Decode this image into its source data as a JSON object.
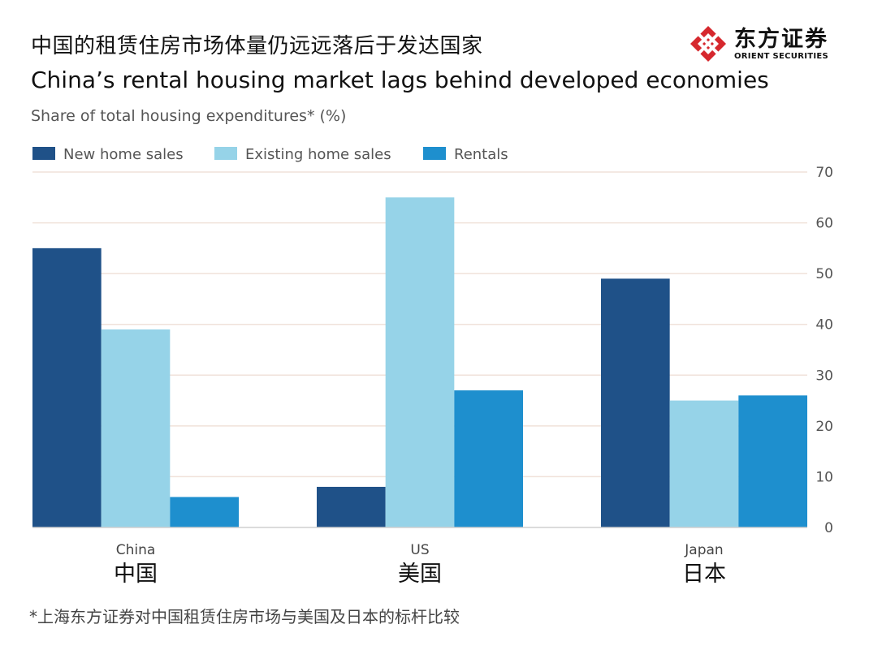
{
  "header": {
    "title_zh": "中国的租赁住房市场体量仍远远落后于发达国家",
    "title_en": "China’s rental housing market lags behind developed economies",
    "subtitle": "Share of total housing expenditures* (%)"
  },
  "logo": {
    "name_zh": "东方证券",
    "name_en": "ORIENT SECURITIES"
  },
  "footnote": "*上海东方证券对中国租赁住房市场与美国及日本的标杆比较",
  "colors": {
    "new_home": "#1f5188",
    "existing_home": "#96d3e8",
    "rentals": "#1e8fce",
    "grid": "#f0e2da",
    "axis": "#cfcfcf",
    "logo": "#d6282e"
  },
  "chart_data": {
    "type": "bar",
    "title": "China’s rental housing market lags behind developed economies",
    "ylabel": "Share of total housing expenditures* (%)",
    "xlabel": "",
    "ylim": [
      0,
      70
    ],
    "yticks": [
      0,
      10,
      20,
      30,
      40,
      50,
      60,
      70
    ],
    "y_axis_side": "right",
    "legend_position": "top-left",
    "grid": true,
    "categories": [
      "China",
      "US",
      "Japan"
    ],
    "categories_zh": [
      "中国",
      "美国",
      "日本"
    ],
    "series": [
      {
        "name": "New home sales",
        "color_key": "new_home",
        "values": [
          55,
          8,
          49
        ]
      },
      {
        "name": "Existing home sales",
        "color_key": "existing_home",
        "values": [
          39,
          65,
          25
        ]
      },
      {
        "name": "Rentals",
        "color_key": "rentals",
        "values": [
          6,
          27,
          26
        ]
      }
    ]
  }
}
